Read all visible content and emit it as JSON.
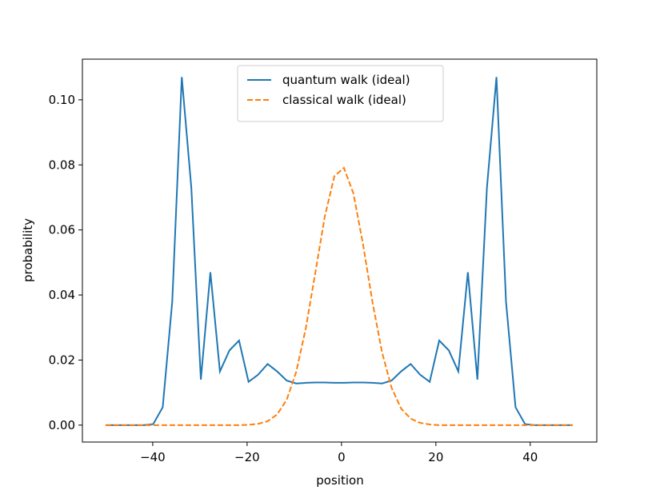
{
  "chart_data": {
    "type": "line",
    "x_label": "position",
    "y_label": "probability",
    "x": [
      -50,
      -47.98,
      -45.96,
      -43.94,
      -41.92,
      -39.9,
      -37.88,
      -35.86,
      -33.84,
      -31.82,
      -29.8,
      -27.78,
      -25.76,
      -23.73,
      -21.71,
      -19.69,
      -17.67,
      -15.65,
      -13.63,
      -11.61,
      -9.59,
      -7.57,
      -5.55,
      -3.53,
      -1.51,
      0.51,
      2.53,
      4.55,
      6.57,
      8.59,
      10.61,
      12.63,
      14.65,
      16.67,
      18.69,
      20.71,
      22.73,
      24.76,
      26.78,
      28.8,
      30.82,
      32.84,
      34.86,
      36.88,
      38.9,
      40.92,
      42.94,
      44.96,
      46.98,
      49
    ],
    "series": [
      {
        "name": "quantum walk (ideal)",
        "color": "#1f77b4",
        "dash": "solid",
        "values": [
          0,
          0,
          0,
          0,
          0,
          0.0003,
          0.0055,
          0.038,
          0.107,
          0.073,
          0.014,
          0.047,
          0.0165,
          0.023,
          0.026,
          0.0133,
          0.0155,
          0.0188,
          0.0165,
          0.0137,
          0.0128,
          0.013,
          0.0131,
          0.0131,
          0.013,
          0.013,
          0.0131,
          0.0131,
          0.013,
          0.0128,
          0.0137,
          0.0165,
          0.0188,
          0.0155,
          0.0133,
          0.026,
          0.023,
          0.0165,
          0.047,
          0.014,
          0.073,
          0.107,
          0.038,
          0.0055,
          0.0003,
          0,
          0,
          0,
          0,
          0
        ]
      },
      {
        "name": "classical walk (ideal)",
        "color": "#ff7f0e",
        "dash": "dashed",
        "values": [
          0,
          0,
          0,
          0,
          0,
          0,
          0,
          0,
          0,
          0,
          0,
          0,
          0,
          0,
          0,
          0.0001,
          0.0004,
          0.0012,
          0.0033,
          0.0078,
          0.0164,
          0.0297,
          0.0468,
          0.0642,
          0.0765,
          0.0791,
          0.0712,
          0.0557,
          0.0378,
          0.0224,
          0.0115,
          0.0051,
          0.002,
          0.0007,
          0.0002,
          0,
          0,
          0,
          0,
          0,
          0,
          0,
          0,
          0,
          0,
          0,
          0,
          0,
          0,
          0
        ]
      }
    ],
    "xlim": [
      -54.9,
      54.1
    ],
    "xticks": [
      {
        "value": -40,
        "label": "−40"
      },
      {
        "value": -20,
        "label": "−20"
      },
      0,
      20,
      40
    ],
    "ylim": [
      -0.0052,
      0.1125
    ],
    "yticks": [
      {
        "value": 0,
        "label": "0.00"
      },
      {
        "value": 0.02,
        "label": "0.02"
      },
      {
        "value": 0.04,
        "label": "0.04"
      },
      {
        "value": 0.06,
        "label": "0.06"
      },
      {
        "value": 0.08,
        "label": "0.08"
      },
      {
        "value": 0.1,
        "label": "0.10"
      }
    ],
    "grid": false,
    "legend": "upper center"
  }
}
